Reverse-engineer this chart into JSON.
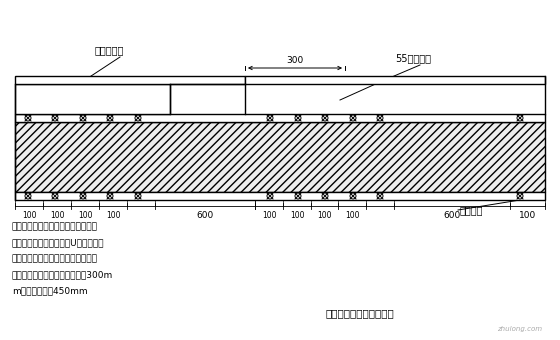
{
  "title": "大模板与小钢模连接构造",
  "label_dingxing": "定型钢模板",
  "label_55xing": "55型钢模板",
  "label_zhishui": "止水螺杆",
  "note_line1": "注：大模板与小钢模连接处，定型作",
  "note_line2": "成与小钢模孔径对应，用U型卡满布连",
  "note_line3": "接固定，墙面支撑体系按照常规做法",
  "note_line4": "柱两侧第一排止水螺杆竖向间距300m",
  "note_line5": "m，其余间距为450mm",
  "dim_300": "300",
  "dim_600": "600",
  "dim_100": "100",
  "bg_color": "#ffffff",
  "line_color": "#000000",
  "font_size": 7.0
}
